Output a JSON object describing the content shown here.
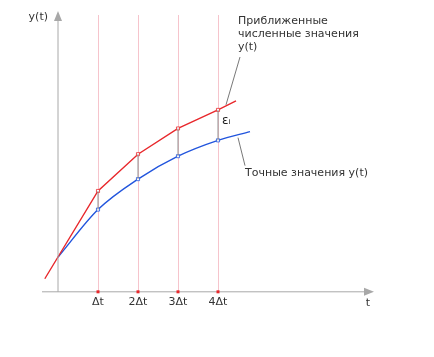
{
  "chart_data": {
    "type": "line",
    "x_label": "t",
    "y_label": "y(t)",
    "xlim": [
      -0.4,
      7.8
    ],
    "ylim": [
      0,
      7
    ],
    "xticks": [
      {
        "value": 1,
        "label": "Δt"
      },
      {
        "value": 2,
        "label": "2Δt"
      },
      {
        "value": 3,
        "label": "3Δt"
      },
      {
        "value": 4,
        "label": "4Δt"
      }
    ],
    "tick_labels": "x",
    "grid": true,
    "series": [
      {
        "name": "Приближенные численные значения y(t)",
        "color": "#e8282c",
        "marker": "square",
        "line_style": "solid",
        "x": [
          -0.33,
          1,
          2,
          3,
          4,
          4.45
        ],
        "values": [
          0.33,
          2.55,
          3.48,
          4.13,
          4.6,
          4.83
        ]
      },
      {
        "name": "Точные значения y(t)",
        "color": "#2255dd",
        "marker": "square",
        "line_style": "smooth",
        "x": [
          0,
          1,
          2,
          3,
          4,
          4.8
        ],
        "values": [
          0.875,
          2.08,
          2.85,
          3.43,
          3.83,
          4.05
        ]
      }
    ],
    "annotations": [
      {
        "text": "εᵢ"
      }
    ]
  }
}
